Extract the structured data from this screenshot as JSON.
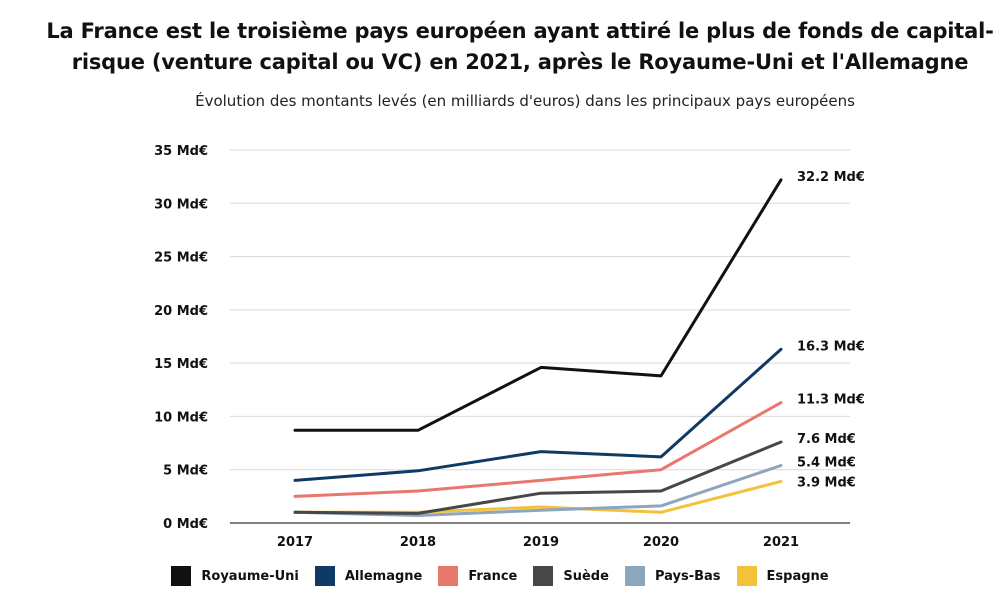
{
  "chart_data": {
    "type": "line",
    "title": "La France est le troisième pays européen ayant attiré le plus de fonds de capital-risque (venture capital ou VC) en 2021, après le Royaume-Uni et l'Allemagne",
    "subtitle": "Évolution des montants levés (en milliards d'euros) dans les principaux pays européens",
    "x": [
      "2017",
      "2018",
      "2019",
      "2020",
      "2021"
    ],
    "y_ticks": [
      "0 Md€",
      "5 Md€",
      "10 Md€",
      "15 Md€",
      "20 Md€",
      "25 Md€",
      "30 Md€",
      "35 Md€"
    ],
    "ylim": [
      0,
      35
    ],
    "grid": "horizontal",
    "legend_position": "bottom",
    "series": [
      {
        "name": "Royaume-Uni",
        "color": "#111111",
        "values": [
          8.7,
          8.7,
          14.6,
          13.8,
          32.2
        ],
        "end_label": "32.2 Md€"
      },
      {
        "name": "Allemagne",
        "color": "#0e3a64",
        "values": [
          4.0,
          4.9,
          6.7,
          6.2,
          16.3
        ],
        "end_label": "16.3 Md€"
      },
      {
        "name": "France",
        "color": "#e8776c",
        "values": [
          2.5,
          3.0,
          4.0,
          5.0,
          11.3
        ],
        "end_label": "11.3 Md€"
      },
      {
        "name": "Suède",
        "color": "#474747",
        "values": [
          1.0,
          0.9,
          2.8,
          3.0,
          7.6
        ],
        "end_label": "7.6 Md€"
      },
      {
        "name": "Pays-Bas",
        "color": "#8ca6bd",
        "values": [
          1.0,
          0.7,
          1.2,
          1.6,
          5.4
        ],
        "end_label": "5.4 Md€"
      },
      {
        "name": "Espagne",
        "color": "#f3c13a",
        "values": [
          1.0,
          1.0,
          1.5,
          1.0,
          3.9
        ],
        "end_label": "3.9 Md€"
      }
    ]
  }
}
